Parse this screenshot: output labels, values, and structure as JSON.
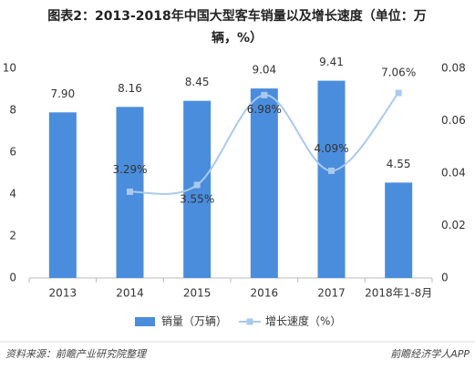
{
  "chart_data": {
    "type": "bar_line",
    "title": [
      "图表2：2013-2018年中国大型客车销量以及增长速度（单位：万",
      "辆，%）"
    ],
    "categories": [
      "2013",
      "2014",
      "2015",
      "2016",
      "2017",
      "2018年1-8月"
    ],
    "series": [
      {
        "name": "销量（万辆）",
        "color": "#4a8ddc",
        "values": [
          7.9,
          8.16,
          8.45,
          9.04,
          9.41,
          4.55
        ],
        "value_labels": [
          "7.90",
          "8.16",
          "8.45",
          "9.04",
          "9.41",
          "4.55"
        ]
      },
      {
        "name": "增长速度（%）",
        "color": "#a9c9ef",
        "axis": "y2",
        "values": [
          null,
          0.0329,
          0.0355,
          0.0698,
          0.0409,
          0.0706
        ],
        "value_labels": [
          null,
          "3.29%",
          "3.55%",
          "6.98%",
          "4.09%",
          "7.06%"
        ]
      }
    ],
    "ylim": [
      0,
      10
    ],
    "yticks": [
      0,
      2,
      4,
      6,
      8,
      10
    ],
    "y2lim": [
      0,
      0.08
    ],
    "y2ticks": [
      0,
      0.02,
      0.04,
      0.06,
      0.08
    ],
    "legend": "bottom",
    "source": "资料来源：前瞻产业研究院整理",
    "brand": "前瞻经济学人APP"
  }
}
